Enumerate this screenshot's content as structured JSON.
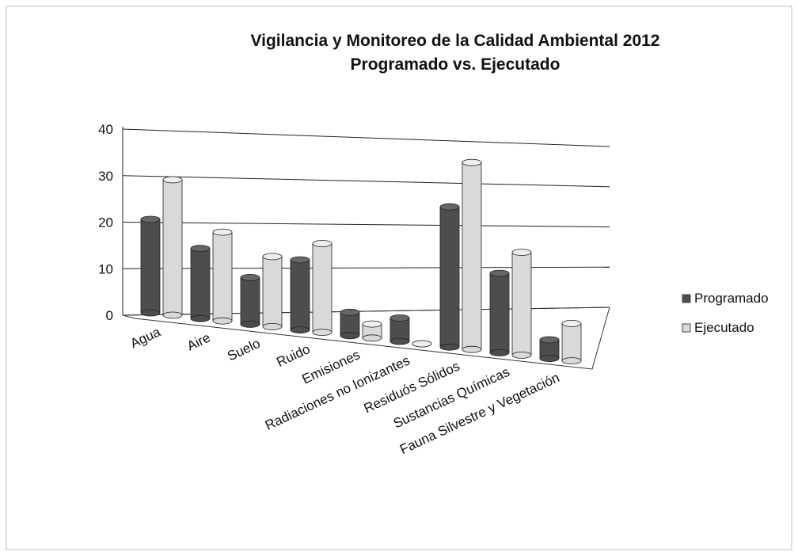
{
  "chart_data": {
    "type": "bar3d",
    "title": "Vigilancia y Monitoreo de la Calidad Ambiental 2012",
    "subtitle": "Programado vs. Ejecutado",
    "categories": [
      "Agua",
      "Aire",
      "Suelo",
      "Ruido",
      "Emisiones",
      "Radiaciones no Ionizantes",
      "Residuós Sólidos",
      "Sustancias Químicas",
      "Fauna Silvestre y Vegetación"
    ],
    "series": [
      {
        "name": "Programado",
        "color": "#4d4d4d",
        "values": [
          20,
          15,
          10,
          15,
          5,
          5,
          30,
          17,
          4
        ]
      },
      {
        "name": "Ejecutado",
        "color": "#d9d9d9",
        "values": [
          29,
          19,
          15,
          19,
          3,
          0,
          40,
          22,
          8
        ]
      }
    ],
    "ylim": [
      0,
      40
    ],
    "yticks": [
      0,
      10,
      20,
      30,
      40
    ],
    "grid": true,
    "legend": "right"
  }
}
